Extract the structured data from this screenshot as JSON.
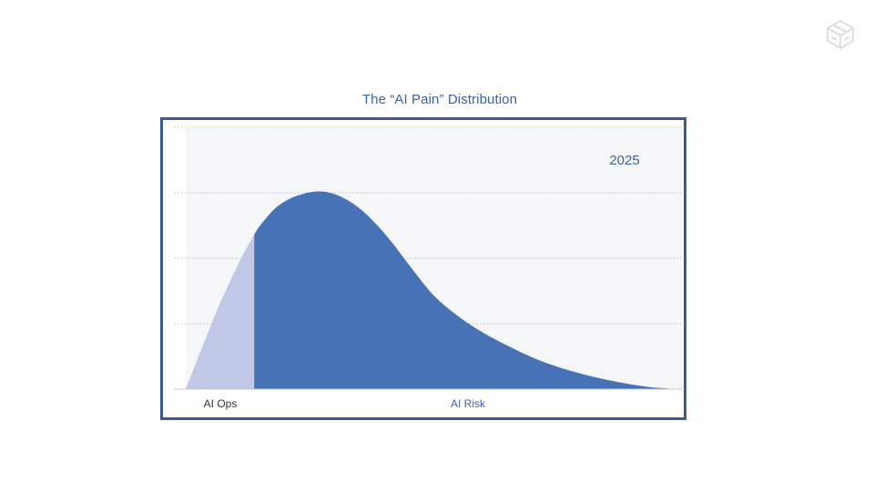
{
  "chart_data": {
    "type": "area",
    "title": "The “AI Pain” Distribution",
    "annotation": "2025",
    "xlabel": "",
    "ylabel": "",
    "x_range": [
      0,
      100
    ],
    "y_range": [
      0,
      4
    ],
    "grid": true,
    "categories": [
      "AI Ops",
      "AI Risk"
    ],
    "segment_split_x": 13.8,
    "curve": {
      "x": [
        0,
        3,
        6,
        9,
        12,
        13.8,
        15,
        18,
        21,
        24,
        27,
        30,
        33,
        36,
        39,
        42,
        45,
        50,
        55,
        60,
        65,
        70,
        75,
        80,
        85,
        90,
        95,
        100
      ],
      "y": [
        0,
        0.58,
        1.15,
        1.66,
        2.12,
        2.36,
        2.5,
        2.76,
        2.91,
        2.99,
        3.02,
        2.98,
        2.87,
        2.7,
        2.47,
        2.2,
        1.9,
        1.43,
        1.11,
        0.86,
        0.66,
        0.48,
        0.34,
        0.23,
        0.14,
        0.07,
        0.02,
        0
      ]
    },
    "series": [
      {
        "name": "AI Ops",
        "color": "#c0c8e5"
      },
      {
        "name": "AI Risk",
        "color": "#4872b6"
      }
    ],
    "colors": {
      "plot_background": "#f5f6f8",
      "gridline": "#c9ccd2",
      "annotation": "#3a64a8",
      "ops_label": "#333333",
      "risk_label": "#3a64a8"
    }
  },
  "logo": {
    "icon": "cube-logo-icon"
  }
}
